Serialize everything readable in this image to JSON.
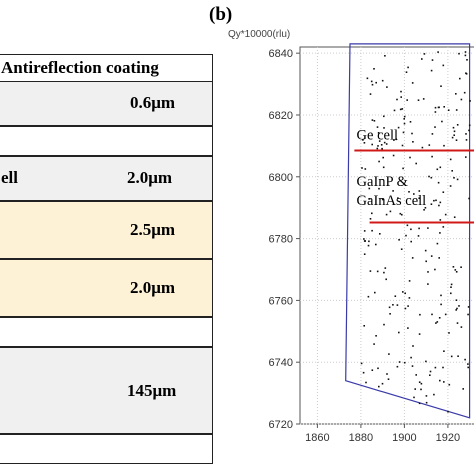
{
  "panel_label": "(b)",
  "layers_panel": {
    "items": [
      {
        "label": "Antireflection coating",
        "thickness": "",
        "fill": "#ffffff"
      },
      {
        "label": "",
        "thickness": "0.6μm",
        "fill": "#f0f0f0"
      },
      {
        "label": "",
        "thickness": "",
        "fill": "#ffffff"
      },
      {
        "label": "ell",
        "thickness": "2.0μm",
        "fill": "#f0f0f0"
      },
      {
        "label": "",
        "thickness": "2.5μm",
        "fill": "#fdf1d6"
      },
      {
        "label": "",
        "thickness": "2.0μm",
        "fill": "#fdf1d6"
      },
      {
        "label": "",
        "thickness": "",
        "fill": "#ffffff"
      },
      {
        "label": "",
        "thickness": "145μm",
        "fill": "#f0f0f0"
      },
      {
        "label": "",
        "thickness": "",
        "fill": "#ffffff"
      }
    ]
  },
  "chart_data": {
    "type": "scatter",
    "title": "",
    "ylabel": "Qy*10000(rlu)",
    "xlabel": "",
    "x_ticks": [
      1860,
      1880,
      1900,
      1920
    ],
    "y_ticks": [
      6720,
      6740,
      6760,
      6780,
      6800,
      6820,
      6840
    ],
    "xlim": [
      1852,
      1932
    ],
    "ylim": [
      6720,
      6842
    ],
    "grid": true,
    "colors": {
      "frame": "#3a3aa8",
      "marker_line": "#d01818",
      "points": "#111111",
      "grid": "#cccccc"
    },
    "scan_region": [
      [
        1875,
        6843
      ],
      [
        1930,
        6843
      ],
      [
        1930,
        6722
      ],
      [
        1873,
        6734
      ]
    ],
    "annotations": [
      {
        "text": "Ge cell",
        "lines": [
          "Ge cell"
        ],
        "x": 1878,
        "y": 6812
      },
      {
        "text": "GaInP & GaInAs cell",
        "lines": [
          "GaInP &",
          "GaInAs cell"
        ],
        "x": 1878,
        "y": 6797
      }
    ],
    "marker_lines": [
      {
        "y": 6808.5,
        "x_start": 1877,
        "x_end": 1932
      },
      {
        "y": 6785.2,
        "x_start": 1884,
        "x_end": 1932
      }
    ]
  }
}
